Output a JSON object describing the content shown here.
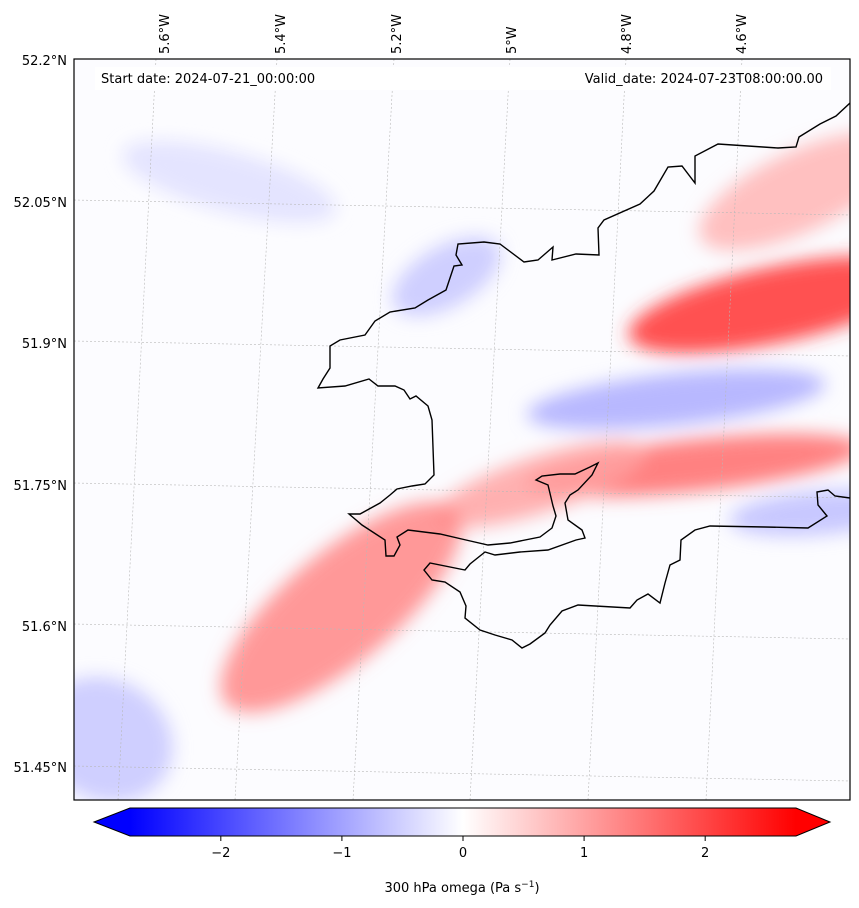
{
  "header": {
    "start_date": "Start date: 2024-07-21_00:00:00",
    "valid_date": "Valid_date: 2024-07-23T08:00:00.00"
  },
  "axes": {
    "longitude_labels": [
      "5.6°W",
      "5.4°W",
      "5.2°W",
      "5°W",
      "4.8°W",
      "4.6°W"
    ],
    "latitude_labels": [
      "52.2°N",
      "52.05°N",
      "51.9°N",
      "51.75°N",
      "51.6°N",
      "51.45°N"
    ]
  },
  "colorbar": {
    "label": "300 hPa omega (Pa s",
    "label_exp": "−1",
    "label_close": ")",
    "ticks": [
      "−2",
      "−1",
      "0",
      "1",
      "2"
    ],
    "tick_values": [
      -2,
      -1,
      0,
      1,
      2
    ],
    "range": [
      -2.75,
      2.75
    ],
    "extend": "both",
    "colormap": "bwr"
  },
  "colors": {
    "negative": "#0000ff",
    "neutral": "#ffffff",
    "positive": "#ff0000",
    "coastline": "#000000",
    "gridline": "#b8b8b8"
  },
  "chart_data": {
    "type": "heatmap",
    "variable": "300 hPa omega",
    "units": "Pa s^-1",
    "features": [
      {
        "kind": "max",
        "lon": -4.62,
        "lat": 51.94,
        "value": 2.2
      },
      {
        "kind": "max",
        "lon": -4.75,
        "lat": 51.77,
        "value": 1.6
      },
      {
        "kind": "max",
        "lon": -5.0,
        "lat": 51.75,
        "value": 1.0
      },
      {
        "kind": "max",
        "lon": -5.32,
        "lat": 51.62,
        "value": 1.3
      },
      {
        "kind": "max",
        "lon": -4.58,
        "lat": 52.06,
        "value": 0.8
      },
      {
        "kind": "min",
        "lon": -4.78,
        "lat": 51.84,
        "value": -0.9
      },
      {
        "kind": "min",
        "lon": -4.55,
        "lat": 51.72,
        "value": -0.7
      },
      {
        "kind": "min",
        "lon": -5.15,
        "lat": 51.97,
        "value": -0.6
      },
      {
        "kind": "min",
        "lon": -5.5,
        "lat": 52.07,
        "value": -0.35
      },
      {
        "kind": "min",
        "lon": -5.7,
        "lat": 51.48,
        "value": -0.6
      }
    ]
  }
}
